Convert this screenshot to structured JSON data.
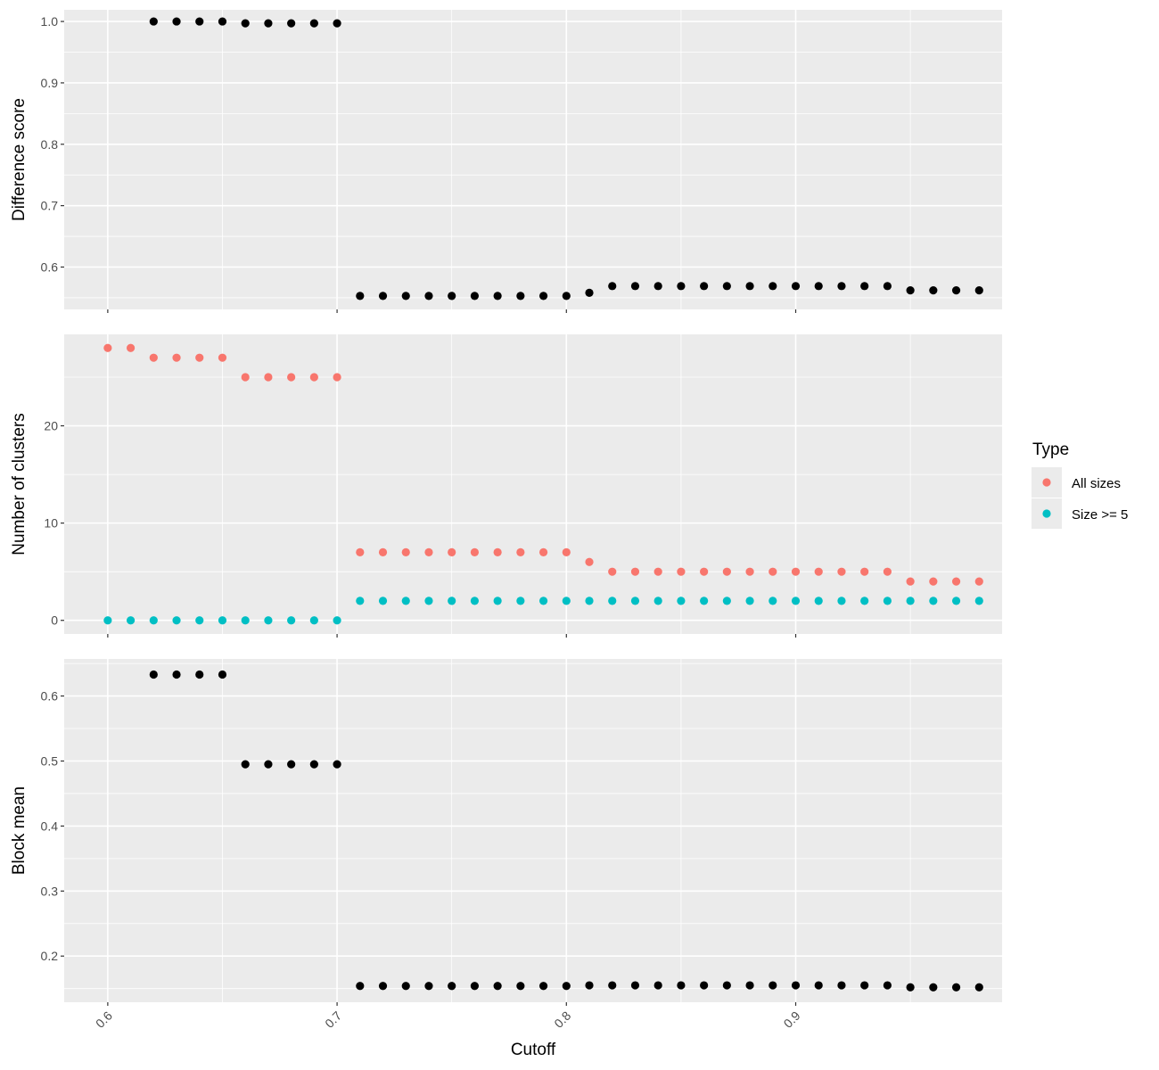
{
  "chart_data": {
    "type": "scatter",
    "facets": "three vertically stacked panels sharing x axis",
    "xlabel": "Cutoff",
    "x_ticks": [
      "0.6",
      "0.7",
      "0.8",
      "0.9"
    ],
    "xlim": [
      0.581,
      0.99
    ],
    "x": [
      0.6,
      0.61,
      0.62,
      0.63,
      0.64,
      0.65,
      0.66,
      0.67,
      0.68,
      0.69,
      0.7,
      0.71,
      0.72,
      0.73,
      0.74,
      0.75,
      0.76,
      0.77,
      0.78,
      0.79,
      0.8,
      0.81,
      0.82,
      0.83,
      0.84,
      0.85,
      0.86,
      0.87,
      0.88,
      0.89,
      0.9,
      0.91,
      0.92,
      0.93,
      0.94,
      0.95,
      0.96,
      0.97,
      0.98
    ],
    "grid": true,
    "panels": [
      {
        "ylabel": "Difference score",
        "ylim": [
          0.531,
          1.019
        ],
        "y_ticks": [
          "0.6",
          "0.7",
          "0.8",
          "0.9",
          "1.0"
        ],
        "series": [
          {
            "color": "#000000",
            "values": [
              null,
              null,
              1.0,
              1.0,
              1.0,
              1.0,
              0.997,
              0.997,
              0.997,
              0.997,
              0.997,
              0.553,
              0.553,
              0.553,
              0.553,
              0.553,
              0.553,
              0.553,
              0.553,
              0.553,
              0.553,
              0.558,
              0.569,
              0.569,
              0.569,
              0.569,
              0.569,
              0.569,
              0.569,
              0.569,
              0.569,
              0.569,
              0.569,
              0.569,
              0.569,
              0.562,
              0.562,
              0.562,
              0.562
            ]
          }
        ]
      },
      {
        "ylabel": "Number of clusters",
        "ylim": [
          -1.4,
          29.4
        ],
        "y_ticks": [
          "0",
          "10",
          "20"
        ],
        "series": [
          {
            "name": "All sizes",
            "color": "#f8766d",
            "values": [
              28,
              28,
              27,
              27,
              27,
              27,
              25,
              25,
              25,
              25,
              25,
              7,
              7,
              7,
              7,
              7,
              7,
              7,
              7,
              7,
              7,
              6,
              5,
              5,
              5,
              5,
              5,
              5,
              5,
              5,
              5,
              5,
              5,
              5,
              5,
              4,
              4,
              4,
              4
            ]
          },
          {
            "name": "Size >= 5",
            "color": "#00bfc4",
            "values": [
              0,
              0,
              0,
              0,
              0,
              0,
              0,
              0,
              0,
              0,
              0,
              2,
              2,
              2,
              2,
              2,
              2,
              2,
              2,
              2,
              2,
              2,
              2,
              2,
              2,
              2,
              2,
              2,
              2,
              2,
              2,
              2,
              2,
              2,
              2,
              2,
              2,
              2,
              2
            ]
          }
        ]
      },
      {
        "ylabel": "Block mean",
        "ylim": [
          0.129,
          0.657
        ],
        "y_ticks": [
          "0.2",
          "0.3",
          "0.4",
          "0.5",
          "0.6"
        ],
        "series": [
          {
            "color": "#000000",
            "values": [
              null,
              null,
              0.633,
              0.633,
              0.633,
              0.633,
              0.495,
              0.495,
              0.495,
              0.495,
              0.495,
              0.154,
              0.154,
              0.154,
              0.154,
              0.154,
              0.154,
              0.154,
              0.154,
              0.154,
              0.154,
              0.155,
              0.155,
              0.155,
              0.155,
              0.155,
              0.155,
              0.155,
              0.155,
              0.155,
              0.155,
              0.155,
              0.155,
              0.155,
              0.155,
              0.152,
              0.152,
              0.152,
              0.152
            ]
          }
        ]
      }
    ],
    "legend": {
      "title": "Type",
      "position": "right",
      "items": [
        {
          "label": "All sizes",
          "color": "#f8766d"
        },
        {
          "label": "Size >= 5",
          "color": "#00bfc4"
        }
      ]
    }
  }
}
